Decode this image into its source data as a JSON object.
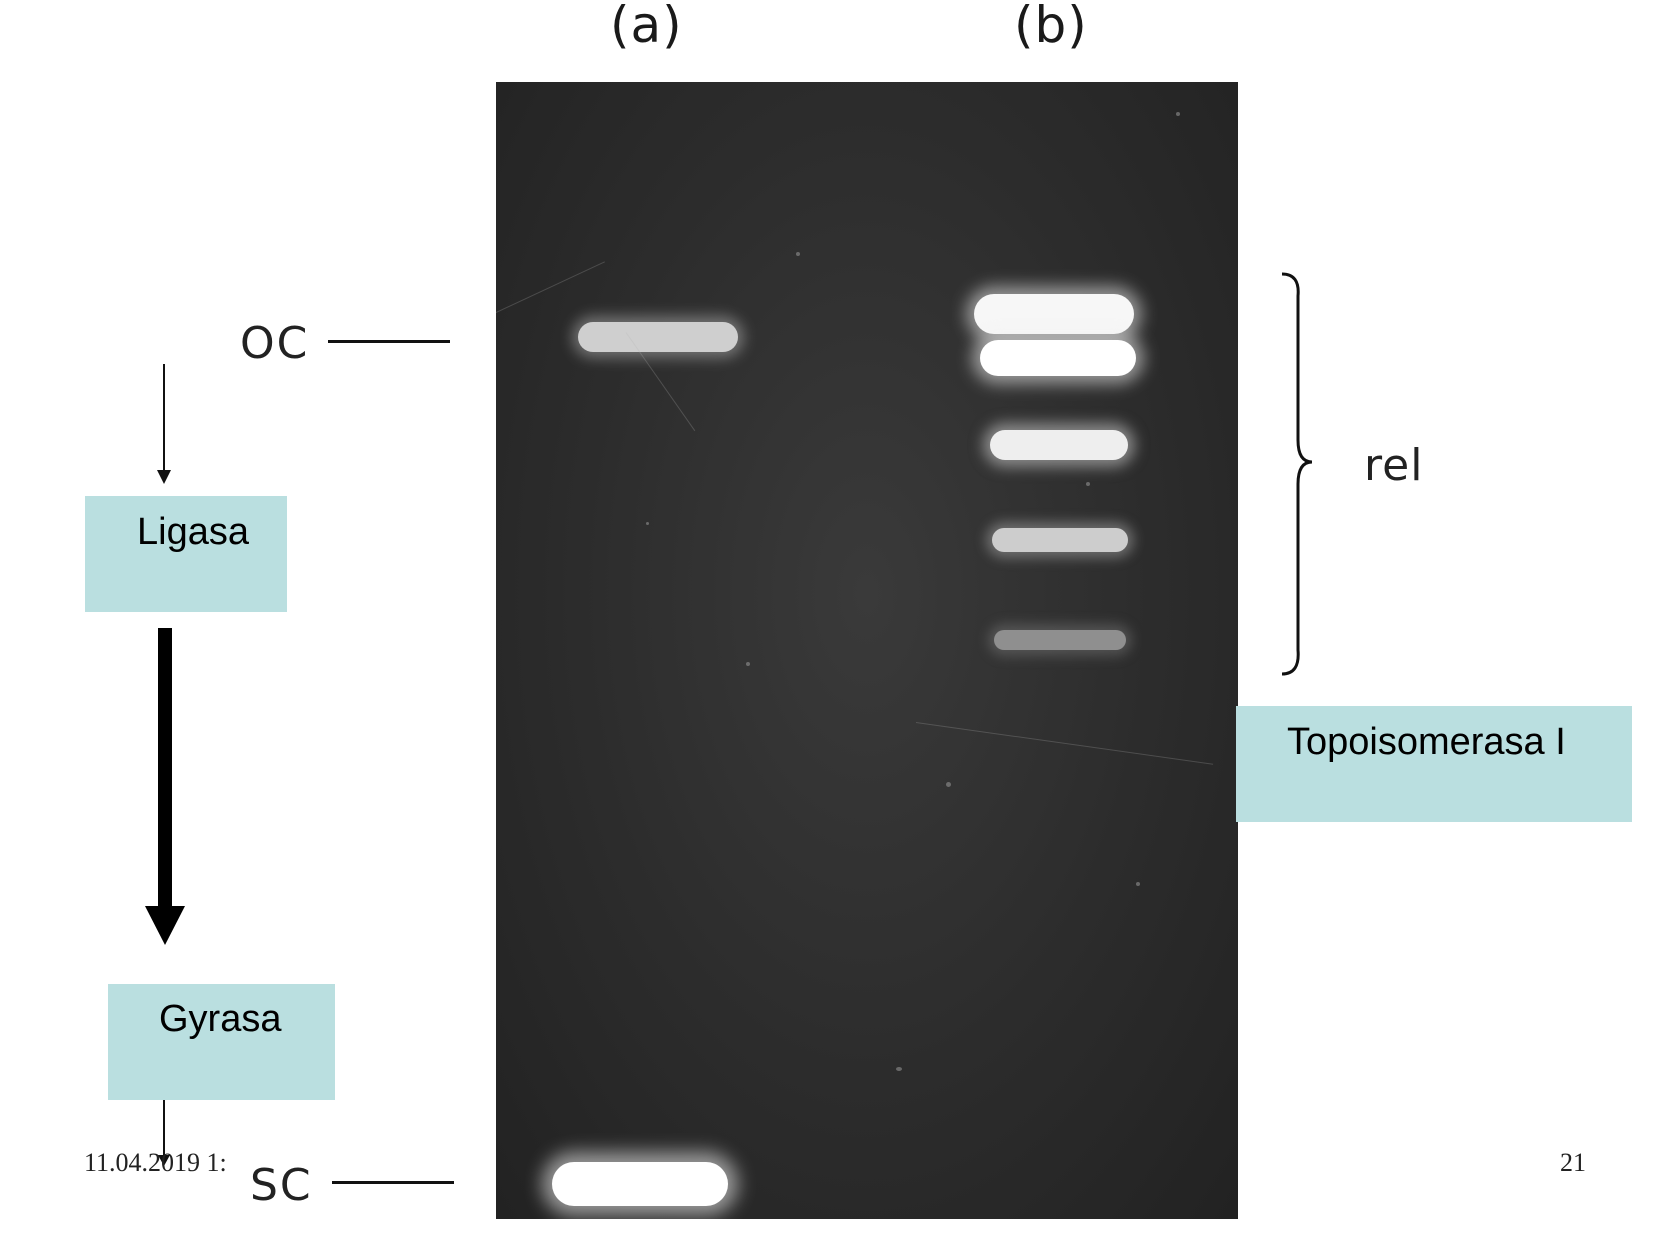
{
  "lanes": {
    "a": "(a)",
    "b": "(b)"
  },
  "markers": {
    "oc": "OC",
    "sc": "SC",
    "rel": "rel"
  },
  "boxes": {
    "ligasa": "Ligasa",
    "gyrasa": "Gyrasa",
    "topoisomerasa": "Topoisomerasa I"
  },
  "footer": {
    "date": "11.04.2019 1:",
    "page": "21"
  },
  "colors": {
    "box": "#badfe0",
    "gel": "#2c2c2c",
    "band": "#f2f2f2"
  }
}
